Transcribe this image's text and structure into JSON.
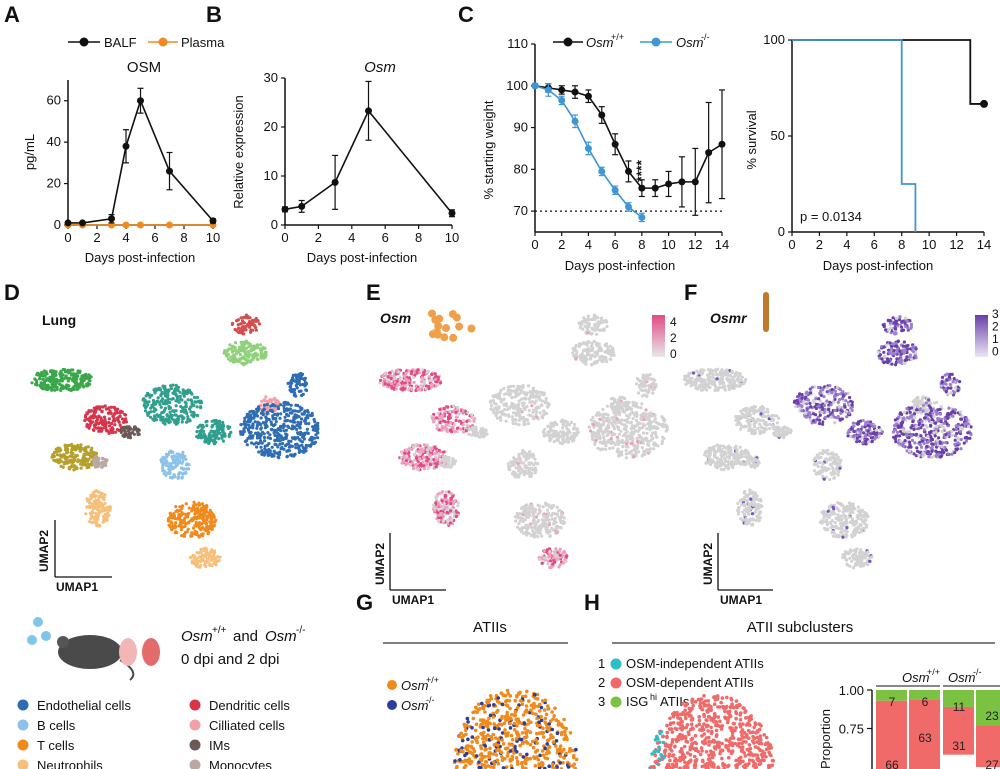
{
  "panel_letters": {
    "A": "A",
    "B": "B",
    "C": "C",
    "D": "D",
    "E": "E",
    "F": "F",
    "G": "G",
    "H": "H"
  },
  "colors": {
    "black": "#111111",
    "orange": "#f08a1c",
    "blue": "#3f96d4",
    "pink": "#e04a86",
    "purple": "#6a3fa8",
    "grey": "#cfcfcf",
    "h_red": "#f06a6a",
    "h_green": "#7cc242",
    "h_cyan": "#2bc0c8",
    "g_navy": "#2c3e96"
  },
  "panelA": {
    "legend": {
      "s1": "BALF",
      "s2": "Plasma"
    },
    "title": "OSM",
    "ylabel": "pg/mL",
    "xlabel": "Days post-infection",
    "yticks": [
      "0",
      "20",
      "40",
      "60"
    ],
    "xticks": [
      "0",
      "2",
      "4",
      "6",
      "8",
      "10"
    ]
  },
  "panelB": {
    "title": "Osm",
    "ylabel": "Relative expression",
    "xlabel": "Days post-infection",
    "yticks": [
      "0",
      "10",
      "20",
      "30"
    ],
    "xticks": [
      "0",
      "2",
      "4",
      "6",
      "8",
      "10"
    ]
  },
  "panelC": {
    "legend": {
      "wt": "Osm",
      "wt_sup": "+/+",
      "ko": "Osm",
      "ko_sup": "-/-"
    },
    "ylabel": "% starting weight",
    "xlabel": "Days post-infection",
    "yticks": [
      "70",
      "80",
      "90",
      "100",
      "110"
    ],
    "xticks": [
      "0",
      "2",
      "4",
      "6",
      "8",
      "10",
      "12",
      "14"
    ],
    "sig": "****",
    "surv_ylabel": "% survival",
    "surv_yticks": [
      "0",
      "50",
      "100"
    ],
    "surv_xlabel": "Days post-infection",
    "surv_xticks": [
      "0",
      "2",
      "4",
      "6",
      "8",
      "10",
      "12",
      "14"
    ],
    "pvalue": "p = 0.0134"
  },
  "panelD": {
    "title": "Lung",
    "umap1": "UMAP1",
    "umap2": "UMAP2"
  },
  "panelE": {
    "title": "Osm",
    "scale": [
      "4",
      "2",
      "0"
    ],
    "umap1": "UMAP1",
    "umap2": "UMAP2"
  },
  "panelF": {
    "title": "Osmr",
    "scale": [
      "3",
      "2",
      "1",
      "0"
    ],
    "umap1": "UMAP1",
    "umap2": "UMAP2"
  },
  "design": {
    "osm": "Osm",
    "wt_sup": "+/+",
    "and": "and",
    "ko_sup": "-/-",
    "line2": "0 dpi and 2 dpi"
  },
  "celltypes": [
    {
      "label": "Endothelial cells",
      "color": "#2f6db3"
    },
    {
      "label": "B cells",
      "color": "#8cc2ea"
    },
    {
      "label": "T cells",
      "color": "#f08a1c"
    },
    {
      "label": "Neutrophils",
      "color": "#f6c07a"
    },
    {
      "label": "Dendritic cells",
      "color": "#d8344a"
    },
    {
      "label": "Cilliated cells",
      "color": "#f2a1a8"
    },
    {
      "label": "IMs",
      "color": "#6b5a55"
    },
    {
      "label": "Monocytes",
      "color": "#b9a9a2"
    }
  ],
  "panelG": {
    "title": "ATIIs",
    "leg1": "Osm",
    "leg1_sup": "+/+",
    "leg2": "Osm",
    "leg2_sup": "-/-"
  },
  "panelH": {
    "title": "ATII subclusters",
    "items": [
      {
        "num": "1",
        "label": "OSM-independent ATIIs"
      },
      {
        "num": "2",
        "label": "OSM-dependent ATIIs"
      },
      {
        "num": "3",
        "label": "ISG",
        "sup": "hi",
        "rest": " ATIIs"
      }
    ],
    "bar_group1": "Osm",
    "bar_group1_sup": "+/+",
    "bar_group2": "Osm",
    "bar_group2_sup": "-/-",
    "yticks": [
      "1.00",
      "0.75"
    ],
    "ylabel": "Proportion"
  },
  "chart_data": [
    {
      "type": "line",
      "title": "OSM",
      "xlabel": "Days post-infection",
      "ylabel": "pg/mL",
      "ylim": [
        0,
        70
      ],
      "xlim": [
        0,
        10
      ],
      "series": [
        {
          "name": "BALF",
          "x": [
            0,
            1,
            3,
            4,
            5,
            7,
            10
          ],
          "y": [
            1,
            1,
            3,
            38,
            60,
            26,
            2
          ],
          "err": [
            0.5,
            0.5,
            2,
            8,
            6,
            9,
            1
          ]
        },
        {
          "name": "Plasma",
          "x": [
            0,
            1,
            3,
            4,
            5,
            7,
            10
          ],
          "y": [
            0,
            0,
            0,
            0,
            0,
            0,
            0
          ]
        }
      ]
    },
    {
      "type": "line",
      "title": "Osm",
      "xlabel": "Days post-infection",
      "ylabel": "Relative expression",
      "ylim": [
        0,
        30
      ],
      "xlim": [
        0,
        10
      ],
      "series": [
        {
          "name": "Osm",
          "x": [
            0,
            1,
            3,
            5,
            10
          ],
          "y": [
            3.2,
            3.8,
            8.7,
            23.3,
            2.4
          ],
          "err": [
            0.5,
            1.2,
            5.5,
            6,
            0.7
          ]
        }
      ]
    },
    {
      "type": "line",
      "title": "",
      "xlabel": "Days post-infection",
      "ylabel": "% starting weight",
      "ylim": [
        65,
        110
      ],
      "xlim": [
        0,
        14
      ],
      "threshold": 70,
      "series": [
        {
          "name": "Osm+/+",
          "x": [
            0,
            1,
            2,
            3,
            4,
            5,
            6,
            7,
            8,
            9,
            10,
            11,
            12,
            13,
            14
          ],
          "y": [
            100,
            99.5,
            99,
            98.5,
            97.5,
            93,
            86,
            79.5,
            75.5,
            75.5,
            76.5,
            77,
            77,
            84,
            86
          ],
          "err": [
            0.5,
            1,
            1,
            1.5,
            1.5,
            2,
            2.5,
            2.5,
            2,
            2,
            3,
            6,
            8,
            12,
            13
          ]
        },
        {
          "name": "Osm-/-",
          "x": [
            0,
            1,
            2,
            3,
            4,
            5,
            6,
            7,
            8
          ],
          "y": [
            100,
            99,
            96.5,
            91.5,
            85,
            79.5,
            75,
            71,
            68.5
          ],
          "err": [
            0.5,
            1.5,
            1,
            1.5,
            1.5,
            1,
            1,
            1,
            1
          ]
        }
      ]
    },
    {
      "type": "line",
      "title": "",
      "xlabel": "Days post-infection",
      "ylabel": "% survival",
      "ylim": [
        0,
        100
      ],
      "xlim": [
        0,
        14
      ],
      "series": [
        {
          "name": "Osm+/+",
          "x": [
            0,
            13,
            13,
            14
          ],
          "y": [
            100,
            100,
            66.7,
            66.7
          ]
        },
        {
          "name": "Osm-/-",
          "x": [
            0,
            8,
            8,
            9,
            9
          ],
          "y": [
            100,
            100,
            25,
            25,
            0
          ]
        }
      ]
    },
    {
      "type": "bar",
      "title": "ATII subclusters",
      "ylabel": "Proportion",
      "ylim": [
        0.7,
        1.0
      ],
      "categories": [
        "Osm+/+ 0dpi",
        "Osm+/+ 2dpi",
        "Osm-/- 0dpi",
        "Osm-/- 2dpi"
      ],
      "series": [
        {
          "name": "ISGhi ATIIs",
          "values": [
            7,
            6,
            11,
            23
          ]
        },
        {
          "name": "OSM-dependent ATIIs",
          "values": [
            66,
            63,
            31,
            27
          ]
        }
      ],
      "visible_labels": [
        "7",
        "6",
        "11",
        "23",
        "31",
        "63",
        "66",
        "27"
      ]
    }
  ]
}
